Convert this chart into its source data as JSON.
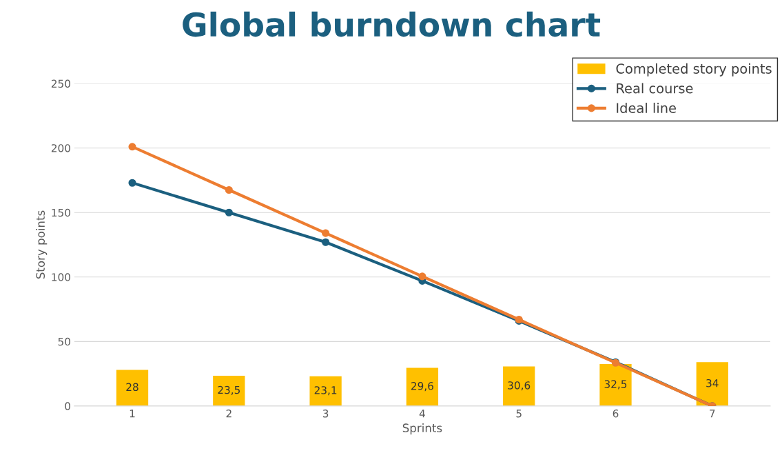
{
  "chart_data": {
    "type": "bar",
    "title": "Global burndown chart",
    "xlabel": "Sprints",
    "ylabel": "Story points",
    "categories": [
      "1",
      "2",
      "3",
      "4",
      "5",
      "6",
      "7"
    ],
    "series": [
      {
        "name": "Completed story points",
        "color": "#ffc000",
        "values": [
          28,
          23.5,
          23.1,
          29.6,
          30.6,
          32.5,
          34
        ],
        "value_labels": [
          "28",
          "23,5",
          "23,1",
          "29,6",
          "30,6",
          "32,5",
          "34"
        ]
      },
      {
        "name": "Real course",
        "type": "line",
        "color": "#1b5f7f",
        "values": [
          173,
          150,
          127,
          97,
          66,
          34,
          0
        ]
      },
      {
        "name": "Ideal line",
        "type": "line",
        "color": "#ed7d31",
        "values": [
          201,
          167.5,
          134,
          100.5,
          67,
          33.5,
          0
        ]
      }
    ],
    "ylim": [
      0,
      250
    ],
    "yticks": [
      0,
      50,
      100,
      150,
      200,
      250
    ],
    "grid": "y",
    "legend": "top right",
    "marker": "circle",
    "line_style": "solid"
  }
}
